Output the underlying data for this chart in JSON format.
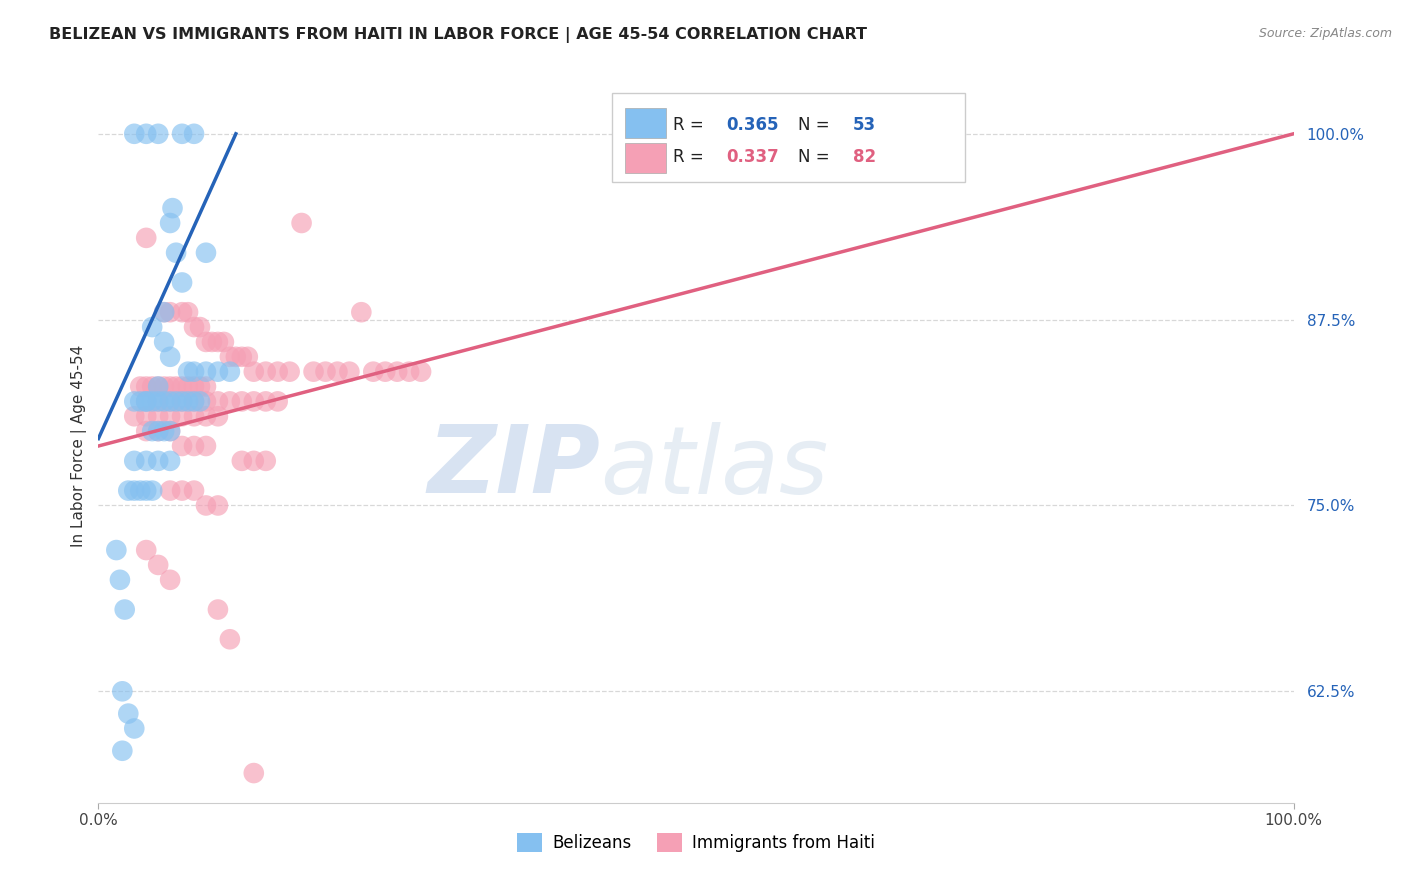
{
  "title": "BELIZEAN VS IMMIGRANTS FROM HAITI IN LABOR FORCE | AGE 45-54 CORRELATION CHART",
  "source": "Source: ZipAtlas.com",
  "ylabel": "In Labor Force | Age 45-54",
  "x_min": 0.0,
  "x_max": 100.0,
  "y_min": 55.0,
  "y_max": 103.0,
  "yticks": [
    62.5,
    75.0,
    87.5,
    100.0
  ],
  "ytick_labels": [
    "62.5%",
    "75.0%",
    "87.5%",
    "100.0%"
  ],
  "xtick_left": "0.0%",
  "xtick_right": "100.0%",
  "blue_color": "#85c0f0",
  "blue_line_color": "#2563b8",
  "pink_color": "#f5a0b5",
  "pink_line_color": "#e06080",
  "blue_R": "0.365",
  "blue_N": "53",
  "pink_R": "0.337",
  "pink_N": "82",
  "legend_cat1": "Belizeans",
  "legend_cat2": "Immigrants from Haiti",
  "blue_scatter_x": [
    3.0,
    5.0,
    4.0,
    7.0,
    8.0,
    6.0,
    6.2,
    6.5,
    7.0,
    9.0,
    5.5,
    4.5,
    5.5,
    6.0,
    7.5,
    8.0,
    9.0,
    10.0,
    11.0,
    5.0,
    4.0,
    3.0,
    3.5,
    4.0,
    4.5,
    5.0,
    5.5,
    6.0,
    6.5,
    7.0,
    7.5,
    8.0,
    8.5,
    4.5,
    5.0,
    5.5,
    6.0,
    3.0,
    4.0,
    5.0,
    6.0,
    2.5,
    3.0,
    3.5,
    4.0,
    4.5,
    2.0,
    2.5,
    3.0,
    2.0,
    1.5,
    1.8,
    2.2
  ],
  "blue_scatter_y": [
    100.0,
    100.0,
    100.0,
    100.0,
    100.0,
    94.0,
    95.0,
    92.0,
    90.0,
    92.0,
    88.0,
    87.0,
    86.0,
    85.0,
    84.0,
    84.0,
    84.0,
    84.0,
    84.0,
    83.0,
    82.0,
    82.0,
    82.0,
    82.0,
    82.0,
    82.0,
    82.0,
    82.0,
    82.0,
    82.0,
    82.0,
    82.0,
    82.0,
    80.0,
    80.0,
    80.0,
    80.0,
    78.0,
    78.0,
    78.0,
    78.0,
    76.0,
    76.0,
    76.0,
    76.0,
    76.0,
    62.5,
    61.0,
    60.0,
    58.5,
    72.0,
    70.0,
    68.0
  ],
  "pink_scatter_x": [
    17.0,
    22.0,
    4.0,
    5.5,
    6.0,
    7.0,
    7.5,
    8.0,
    8.5,
    9.0,
    9.5,
    10.0,
    10.5,
    11.0,
    11.5,
    12.0,
    12.5,
    13.0,
    14.0,
    15.0,
    16.0,
    18.0,
    19.0,
    20.0,
    21.0,
    23.0,
    24.0,
    25.0,
    26.0,
    27.0,
    3.5,
    4.0,
    4.5,
    5.0,
    5.5,
    6.0,
    6.5,
    7.0,
    7.5,
    8.0,
    8.5,
    9.0,
    4.0,
    5.0,
    6.0,
    7.0,
    8.0,
    9.0,
    10.0,
    11.0,
    12.0,
    13.0,
    14.0,
    15.0,
    3.0,
    4.0,
    5.0,
    6.0,
    7.0,
    8.0,
    9.0,
    10.0,
    4.0,
    5.0,
    6.0,
    7.0,
    8.0,
    9.0,
    12.0,
    13.0,
    14.0,
    6.0,
    7.0,
    8.0,
    9.0,
    10.0,
    4.0,
    5.0,
    6.0,
    10.0,
    11.0,
    13.0
  ],
  "pink_scatter_y": [
    94.0,
    88.0,
    93.0,
    88.0,
    88.0,
    88.0,
    88.0,
    87.0,
    87.0,
    86.0,
    86.0,
    86.0,
    86.0,
    85.0,
    85.0,
    85.0,
    85.0,
    84.0,
    84.0,
    84.0,
    84.0,
    84.0,
    84.0,
    84.0,
    84.0,
    84.0,
    84.0,
    84.0,
    84.0,
    84.0,
    83.0,
    83.0,
    83.0,
    83.0,
    83.0,
    83.0,
    83.0,
    83.0,
    83.0,
    83.0,
    83.0,
    83.0,
    82.0,
    82.0,
    82.0,
    82.0,
    82.0,
    82.0,
    82.0,
    82.0,
    82.0,
    82.0,
    82.0,
    82.0,
    81.0,
    81.0,
    81.0,
    81.0,
    81.0,
    81.0,
    81.0,
    81.0,
    80.0,
    80.0,
    80.0,
    79.0,
    79.0,
    79.0,
    78.0,
    78.0,
    78.0,
    76.0,
    76.0,
    76.0,
    75.0,
    75.0,
    72.0,
    71.0,
    70.0,
    68.0,
    66.0,
    57.0
  ],
  "blue_trend_x": [
    0.0,
    11.5
  ],
  "blue_trend_y": [
    79.5,
    100.0
  ],
  "pink_trend_x": [
    0.0,
    100.0
  ],
  "pink_trend_y": [
    79.0,
    100.0
  ],
  "watermark_zip": "ZIP",
  "watermark_atlas": "atlas",
  "background_color": "#ffffff",
  "grid_color": "#d8d8d8",
  "title_color": "#222222",
  "tick_color_y": "#2563b8",
  "tick_color_x": "#444444"
}
